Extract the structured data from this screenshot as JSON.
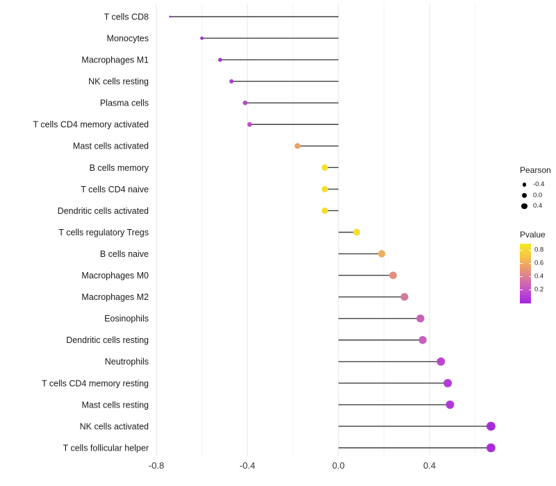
{
  "chart_data": {
    "type": "lollipop",
    "orientation": "horizontal",
    "title": "",
    "xlabel": "",
    "ylabel": "",
    "x_tick_labels": [
      "-0.8",
      "-0.4",
      "0.0",
      "0.4"
    ],
    "x_tick_values": [
      -0.8,
      -0.4,
      0.0,
      0.4
    ],
    "x_minor_values": [
      -0.6,
      -0.2,
      0.2,
      0.6
    ],
    "xlim": [
      -0.81,
      0.75
    ],
    "baseline": 0,
    "grid": "vertical gridlines only, no panel border",
    "points": [
      {
        "label": "T cells CD8",
        "pearson": -0.74,
        "color": "#8d2bd8"
      },
      {
        "label": "Monocytes",
        "pearson": -0.6,
        "color": "#9a30cf"
      },
      {
        "label": "Macrophages M1",
        "pearson": -0.52,
        "color": "#a138ca"
      },
      {
        "label": "NK cells resting",
        "pearson": -0.47,
        "color": "#a843c6"
      },
      {
        "label": "Plasma cells",
        "pearson": -0.41,
        "color": "#b14cc4"
      },
      {
        "label": "T cells CD4 memory activated",
        "pearson": -0.39,
        "color": "#b851c1"
      },
      {
        "label": "Mast cells activated",
        "pearson": -0.18,
        "color": "#e9a160"
      },
      {
        "label": "B cells memory",
        "pearson": -0.06,
        "color": "#f3e028"
      },
      {
        "label": "T cells CD4 naive",
        "pearson": -0.06,
        "color": "#f3e028"
      },
      {
        "label": "Dendritic cells activated",
        "pearson": -0.06,
        "color": "#f3e028"
      },
      {
        "label": "T cells regulatory  Tregs",
        "pearson": 0.08,
        "color": "#f2de2b"
      },
      {
        "label": "B cells naive",
        "pearson": 0.19,
        "color": "#edae60"
      },
      {
        "label": "Macrophages M0",
        "pearson": 0.24,
        "color": "#e58e7f"
      },
      {
        "label": "Macrophages M2",
        "pearson": 0.29,
        "color": "#d9779f"
      },
      {
        "label": "Eosinophils",
        "pearson": 0.36,
        "color": "#c961b8"
      },
      {
        "label": "Dendritic cells resting",
        "pearson": 0.37,
        "color": "#c75fc0"
      },
      {
        "label": "Neutrophils",
        "pearson": 0.45,
        "color": "#bb45cd"
      },
      {
        "label": "T cells CD4 memory resting",
        "pearson": 0.48,
        "color": "#b43cd3"
      },
      {
        "label": "Mast cells resting",
        "pearson": 0.49,
        "color": "#b138d6"
      },
      {
        "label": "NK cells activated",
        "pearson": 0.67,
        "color": "#a82dd8"
      },
      {
        "label": "T cells follicular helper",
        "pearson": 0.67,
        "color": "#a82dd8"
      }
    ],
    "legend_position": "right",
    "legends": {
      "size": {
        "title": "Pearson",
        "entries": [
          "-0.4",
          "0.0",
          "0.4"
        ],
        "dot_color": "#000000"
      },
      "color": {
        "title": "Pvalue",
        "ticks": [
          "0.8",
          "0.6",
          "0.4",
          "0.2"
        ],
        "gradient_top_to_bottom": [
          "#f5e926",
          "#f8c741",
          "#eb9c6e",
          "#d875a0",
          "#c14ecc",
          "#a026dd"
        ]
      }
    },
    "colors": {
      "stem": "#3f3f3f",
      "grid_major": "#e6e6e6",
      "grid_minor": "#f2f2f2",
      "axis_text": "#333333",
      "label_text": "#1a1a1a",
      "background": "#ffffff"
    }
  }
}
